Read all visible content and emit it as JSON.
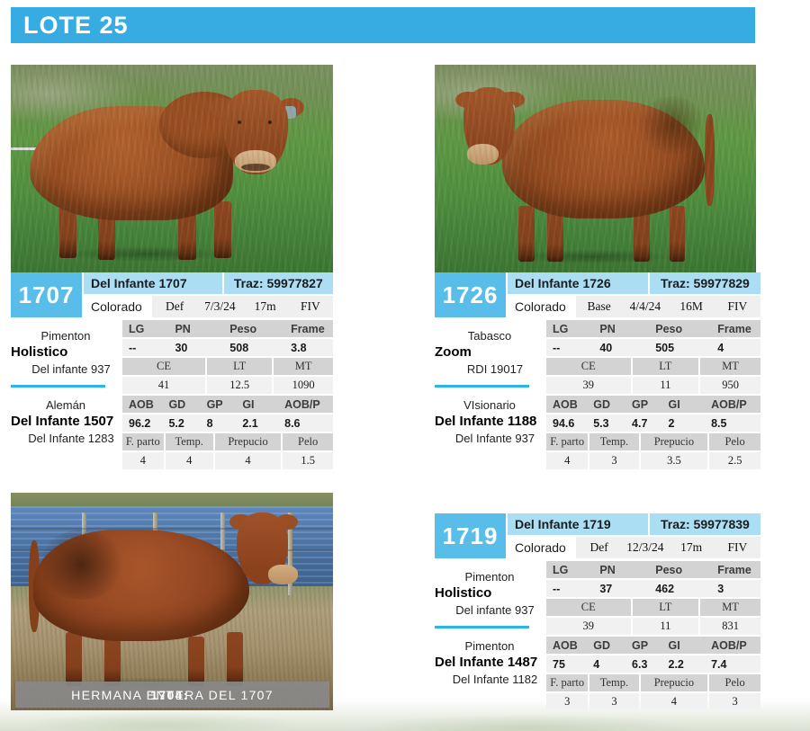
{
  "page": {
    "banner_label": "LOTE 25",
    "colors": {
      "banner_blue": "#36ace2",
      "lot_badge_blue": "#58bde9",
      "header_light_blue": "#abddf3",
      "pedigree_underline": "#2cb6e8",
      "table_header_gray": "#d3d3d3",
      "table_value_gray": "#f1f1f1",
      "caption_gray": "#898989"
    }
  },
  "caption": {
    "number": "1704:",
    "text": "HERMANA ENTERA DEL 1707"
  },
  "lots": [
    {
      "number": "1707",
      "name": "Del Infante 1707",
      "traz": "Traz: 59977827",
      "info": {
        "coat": "Colorado",
        "cat": "Def",
        "date": "7/3/24",
        "age": "17m",
        "method": "FIV"
      },
      "ped_top": {
        "line1": "Pimenton",
        "line2": "Holistico",
        "line3": "Del infante 937"
      },
      "ped_bot": {
        "line1": "Alemán",
        "line2": "Del Infante 1507",
        "line3": "Del Infante 1283"
      },
      "t": {
        "h1": [
          "LG",
          "PN",
          "Peso",
          "Frame"
        ],
        "v1": [
          "--",
          "30",
          "508",
          "3.8"
        ],
        "h2": [
          "CE",
          "LT",
          "MT"
        ],
        "v2": [
          "41",
          "12.5",
          "1090"
        ],
        "h3": [
          "AOB",
          "GD",
          "GP",
          "GI",
          "AOB/P"
        ],
        "v3": [
          "96.2",
          "5.2",
          "8",
          "2.1",
          "8.6"
        ],
        "h4": [
          "F. parto",
          "Temp.",
          "Prepucio",
          "Pelo"
        ],
        "v4": [
          "4",
          "4",
          "4",
          "1.5"
        ]
      }
    },
    {
      "number": "1726",
      "name": "Del Infante 1726",
      "traz": "Traz: 59977829",
      "info": {
        "coat": "Colorado",
        "cat": "Base",
        "date": "4/4/24",
        "age": "16M",
        "method": "FIV"
      },
      "ped_top": {
        "line1": "Tabasco",
        "line2": "Zoom",
        "line3": "RDI 19017"
      },
      "ped_bot": {
        "line1": "VIsionario",
        "line2": "Del Infante 1188",
        "line3": "Del Infante 937"
      },
      "t": {
        "h1": [
          "LG",
          "PN",
          "Peso",
          "Frame"
        ],
        "v1": [
          "--",
          "40",
          "505",
          "4"
        ],
        "h2": [
          "CE",
          "LT",
          "MT"
        ],
        "v2": [
          "39",
          "11",
          "950"
        ],
        "h3": [
          "AOB",
          "GD",
          "GP",
          "GI",
          "AOB/P"
        ],
        "v3": [
          "94.6",
          "5.3",
          "4.7",
          "2",
          "8.5"
        ],
        "h4": [
          "F. parto",
          "Temp.",
          "Prepucio",
          "Pelo"
        ],
        "v4": [
          "4",
          "3",
          "3.5",
          "2.5"
        ]
      }
    },
    {
      "number": "1719",
      "name": "Del Infante 1719",
      "traz": "Traz: 59977839",
      "info": {
        "coat": "Colorado",
        "cat": "Def",
        "date": "12/3/24",
        "age": "17m",
        "method": "FIV"
      },
      "ped_top": {
        "line1": "Pimenton",
        "line2": "Holistico",
        "line3": "Del infante 937"
      },
      "ped_bot": {
        "line1": "Pimenton",
        "line2": "Del Infante 1487",
        "line3": "Del Infante 1182"
      },
      "t": {
        "h1": [
          "LG",
          "PN",
          "Peso",
          "Frame"
        ],
        "v1": [
          "--",
          "37",
          "462",
          "3"
        ],
        "h2": [
          "CE",
          "LT",
          "MT"
        ],
        "v2": [
          "39",
          "11",
          "831"
        ],
        "h3": [
          "AOB",
          "GD",
          "GP",
          "GI",
          "AOB/P"
        ],
        "v3": [
          "75",
          "4",
          "6.3",
          "2.2",
          "7.4"
        ],
        "h4": [
          "F. parto",
          "Temp.",
          "Prepucio",
          "Pelo"
        ],
        "v4": [
          "3",
          "3",
          "4",
          "3"
        ]
      }
    }
  ]
}
